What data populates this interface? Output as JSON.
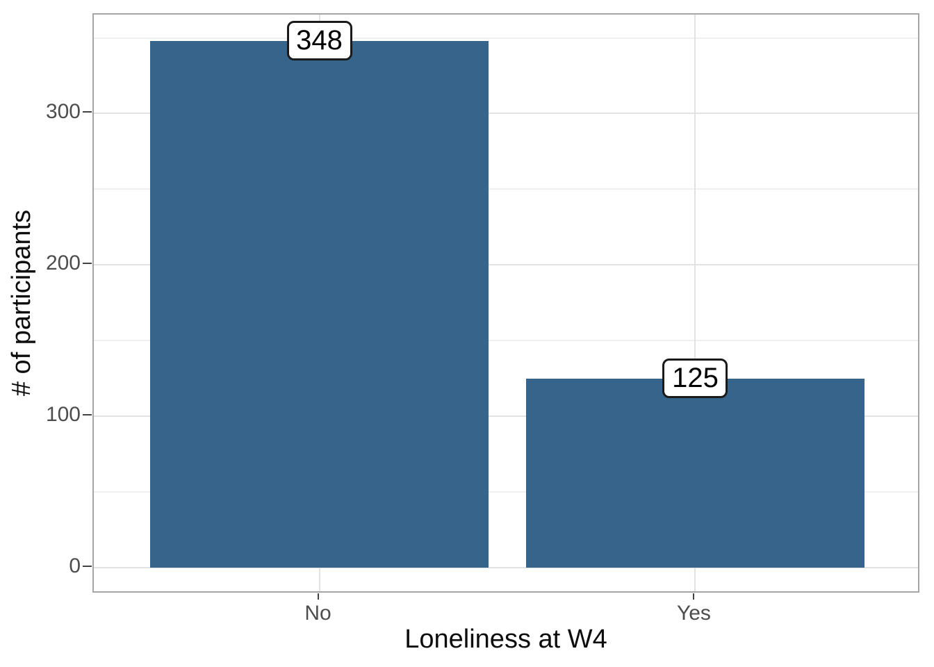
{
  "chart_data": {
    "type": "bar",
    "title": "",
    "xlabel": "Loneliness at W4",
    "ylabel": "# of participants",
    "categories": [
      "No",
      "Yes"
    ],
    "values": [
      348,
      125
    ],
    "bar_labels": [
      "348",
      "125"
    ],
    "y_axis": {
      "major_ticks": [
        0,
        100,
        200,
        300
      ],
      "minor_ticks": [
        50,
        150,
        250,
        350
      ],
      "display_range": [
        -17.4,
        365.4
      ]
    },
    "ylim": [
      0,
      348
    ],
    "grid": "horizontal major+minor, vertical major at category centers",
    "legend": "none",
    "colors": {
      "bar_fill": "#36648B",
      "grid_major": "#E2E2E2",
      "grid_minor": "#EFEFEF",
      "panel_border": "#A5A5A5",
      "tick_mark": "#424242",
      "tick_label": "#4D4D4D",
      "axis_title": "#0D0D0D",
      "label_box_bg": "#FFFFFF",
      "label_box_border": "#1A1A1A",
      "label_text": "#000000",
      "background": "#FFFFFF"
    }
  }
}
